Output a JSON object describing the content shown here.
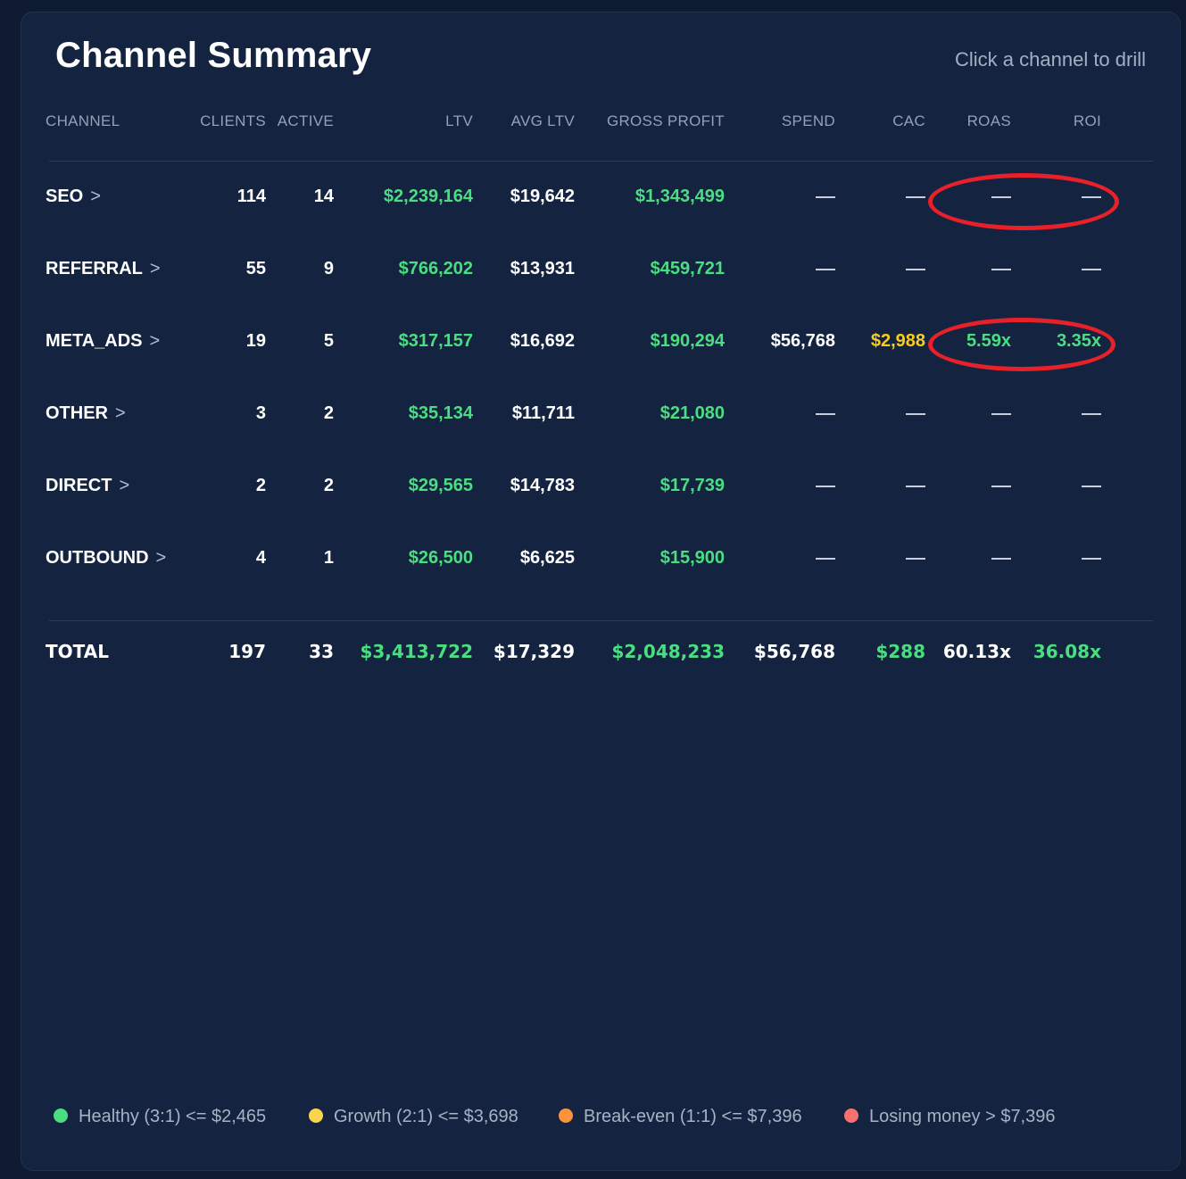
{
  "header": {
    "title": "Channel Summary",
    "hint": "Click a channel to drill"
  },
  "columns": {
    "channel": "CHANNEL",
    "clients": "CLIENTS",
    "active": "ACTIVE",
    "ltv": "LTV",
    "avg_ltv": "AVG LTV",
    "gross_profit": "GROSS PROFIT",
    "spend": "SPEND",
    "cac": "CAC",
    "roas": "ROAS",
    "roi": "ROI"
  },
  "rows": [
    {
      "channel": "SEO",
      "chevron": ">",
      "clients": "114",
      "active": "14",
      "ltv": "$2,239,164",
      "avg_ltv": "$19,642",
      "gross_profit": "$1,343,499",
      "spend": null,
      "cac": null,
      "roas": null,
      "roi": null
    },
    {
      "channel": "REFERRAL",
      "chevron": ">",
      "clients": "55",
      "active": "9",
      "ltv": "$766,202",
      "avg_ltv": "$13,931",
      "gross_profit": "$459,721",
      "spend": null,
      "cac": null,
      "roas": null,
      "roi": null
    },
    {
      "channel": "META_ADS",
      "chevron": ">",
      "clients": "19",
      "active": "5",
      "ltv": "$317,157",
      "avg_ltv": "$16,692",
      "gross_profit": "$190,294",
      "spend": "$56,768",
      "cac": "$2,988",
      "roas": "5.59x",
      "roi": "3.35x"
    },
    {
      "channel": "OTHER",
      "chevron": ">",
      "clients": "3",
      "active": "2",
      "ltv": "$35,134",
      "avg_ltv": "$11,711",
      "gross_profit": "$21,080",
      "spend": null,
      "cac": null,
      "roas": null,
      "roi": null
    },
    {
      "channel": "DIRECT",
      "chevron": ">",
      "clients": "2",
      "active": "2",
      "ltv": "$29,565",
      "avg_ltv": "$14,783",
      "gross_profit": "$17,739",
      "spend": null,
      "cac": null,
      "roas": null,
      "roi": null
    },
    {
      "channel": "OUTBOUND",
      "chevron": ">",
      "clients": "4",
      "active": "1",
      "ltv": "$26,500",
      "avg_ltv": "$6,625",
      "gross_profit": "$15,900",
      "spend": null,
      "cac": null,
      "roas": null,
      "roi": null
    }
  ],
  "total": {
    "label": "TOTAL",
    "clients": "197",
    "active": "33",
    "ltv": "$3,413,722",
    "avg_ltv": "$17,329",
    "gross_profit": "$2,048,233",
    "spend": "$56,768",
    "cac": "$288",
    "roas": "60.13x",
    "roi": "36.08x"
  },
  "legend": [
    {
      "label": "Healthy (3:1) <= $2,465",
      "color": "#4ade80"
    },
    {
      "label": "Growth (2:1) <= $3,698",
      "color": "#fcd34d"
    },
    {
      "label": "Break-even (1:1) <= $7,396",
      "color": "#fb923c"
    },
    {
      "label": "Losing money > $7,396",
      "color": "#f87171"
    }
  ],
  "colors": {
    "background": "#0f1b30",
    "panel": "#142440",
    "positive": "#4ade80",
    "warning": "#facc15",
    "annotation": "#e8202a"
  }
}
